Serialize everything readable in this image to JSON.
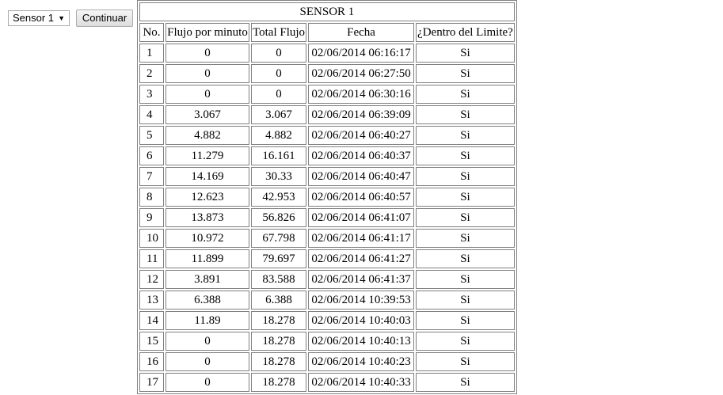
{
  "controls": {
    "sensor_select_value": "Sensor 1",
    "continue_label": "Continuar"
  },
  "table": {
    "title": "SENSOR 1",
    "headers": [
      "No.",
      "Flujo por minuto",
      "Total Flujo",
      "Fecha",
      "¿Dentro del Limite?"
    ],
    "rows": [
      [
        "1",
        "0",
        "0",
        "02/06/2014 06:16:17",
        "Si"
      ],
      [
        "2",
        "0",
        "0",
        "02/06/2014 06:27:50",
        "Si"
      ],
      [
        "3",
        "0",
        "0",
        "02/06/2014 06:30:16",
        "Si"
      ],
      [
        "4",
        "3.067",
        "3.067",
        "02/06/2014 06:39:09",
        "Si"
      ],
      [
        "5",
        "4.882",
        "4.882",
        "02/06/2014 06:40:27",
        "Si"
      ],
      [
        "6",
        "11.279",
        "16.161",
        "02/06/2014 06:40:37",
        "Si"
      ],
      [
        "7",
        "14.169",
        "30.33",
        "02/06/2014 06:40:47",
        "Si"
      ],
      [
        "8",
        "12.623",
        "42.953",
        "02/06/2014 06:40:57",
        "Si"
      ],
      [
        "9",
        "13.873",
        "56.826",
        "02/06/2014 06:41:07",
        "Si"
      ],
      [
        "10",
        "10.972",
        "67.798",
        "02/06/2014 06:41:17",
        "Si"
      ],
      [
        "11",
        "11.899",
        "79.697",
        "02/06/2014 06:41:27",
        "Si"
      ],
      [
        "12",
        "3.891",
        "83.588",
        "02/06/2014 06:41:37",
        "Si"
      ],
      [
        "13",
        "6.388",
        "6.388",
        "02/06/2014 10:39:53",
        "Si"
      ],
      [
        "14",
        "11.89",
        "18.278",
        "02/06/2014 10:40:03",
        "Si"
      ],
      [
        "15",
        "0",
        "18.278",
        "02/06/2014 10:40:13",
        "Si"
      ],
      [
        "16",
        "0",
        "18.278",
        "02/06/2014 10:40:23",
        "Si"
      ],
      [
        "17",
        "0",
        "18.278",
        "02/06/2014 10:40:33",
        "Si"
      ]
    ]
  }
}
